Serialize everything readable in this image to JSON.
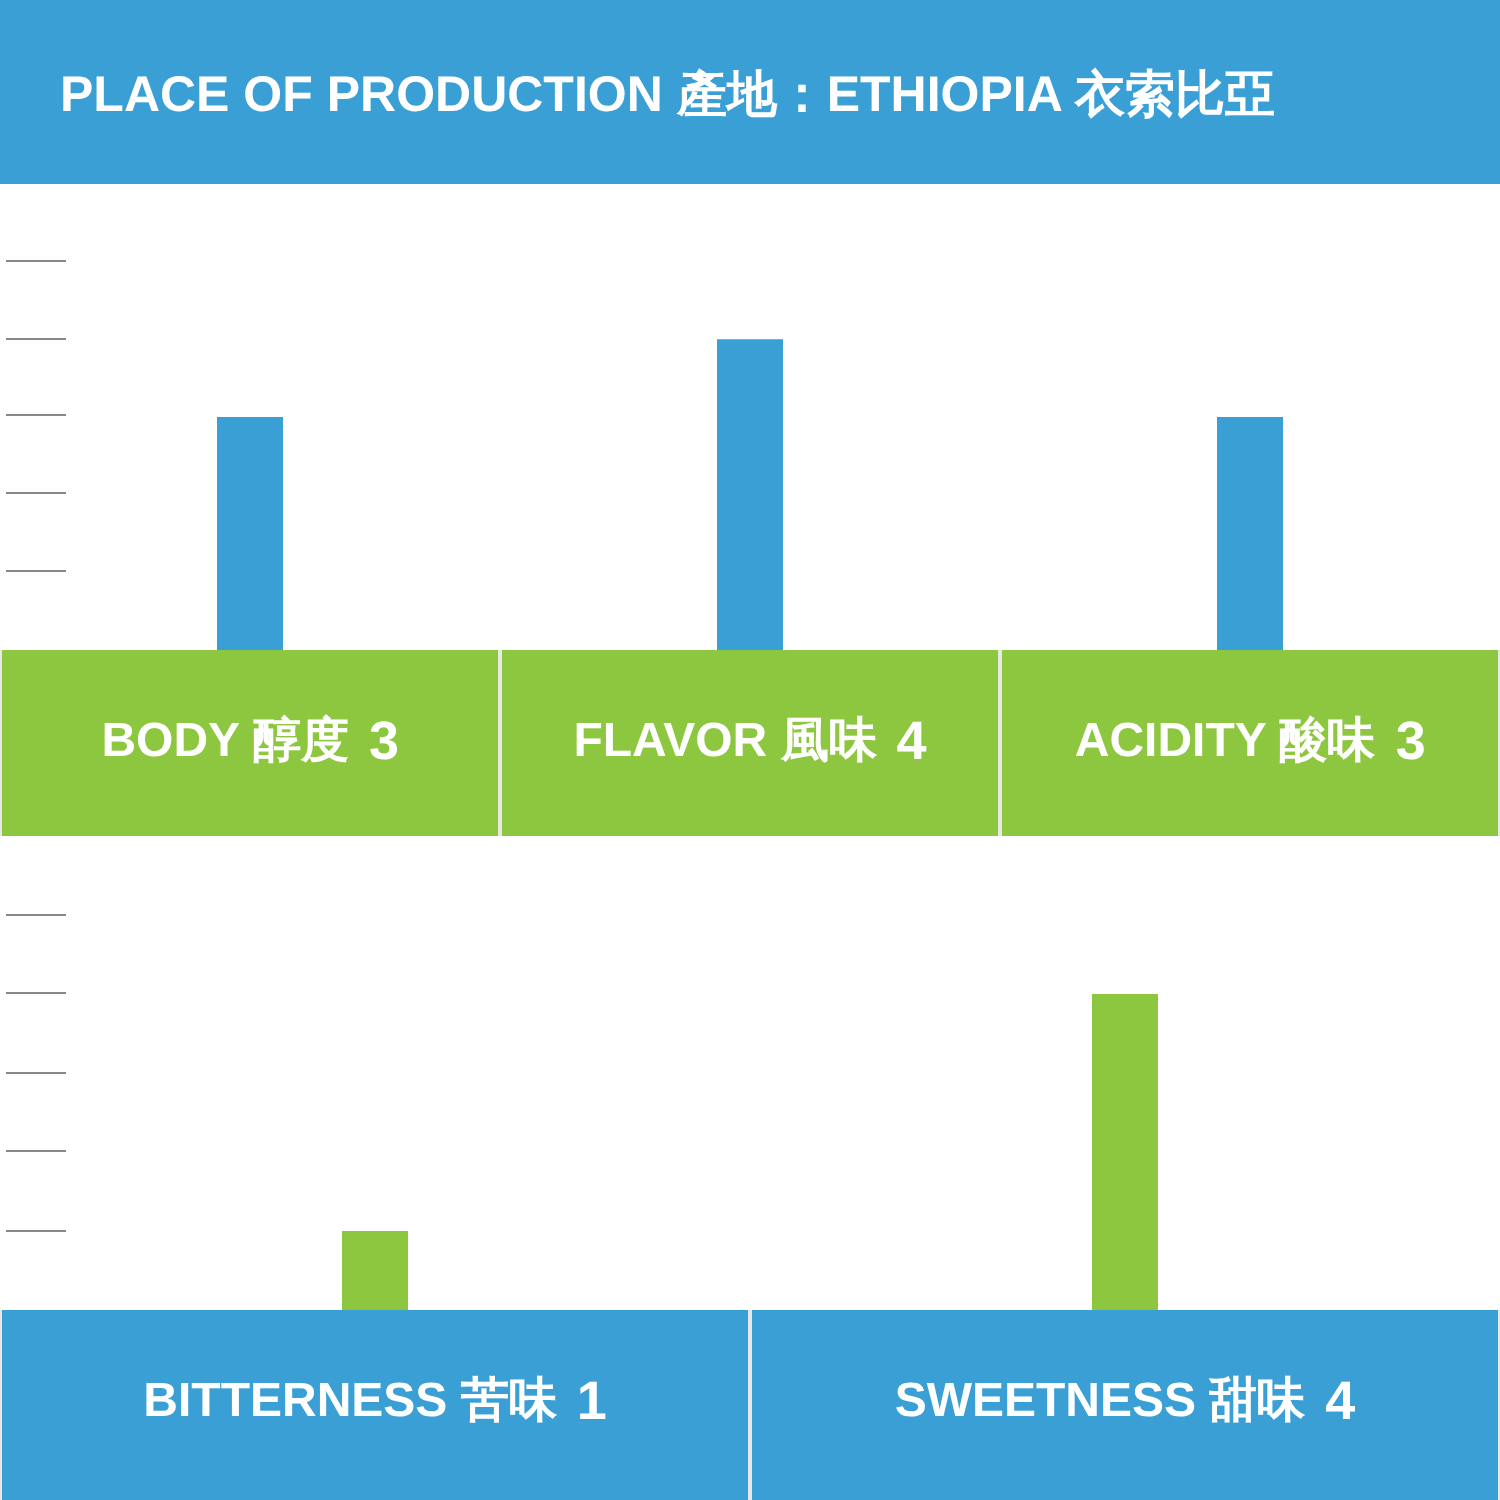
{
  "chart_data": [
    {
      "type": "bar",
      "title": "PLACE OF PRODUCTION 產地：ETHIOPIA 衣索比亞",
      "categories": [
        "BODY 醇度",
        "FLAVOR 風味",
        "ACIDITY 酸味"
      ],
      "values": [
        3,
        4,
        3
      ],
      "color": "#3a9fd5",
      "data_labels": true,
      "tick_labels": "x",
      "grid": false
    },
    {
      "type": "bar",
      "categories": [
        "BITTERNESS 苦味",
        "SWEETNESS 甜味"
      ],
      "values": [
        1,
        4
      ],
      "color": "#8dc63f",
      "data_labels": true,
      "tick_labels": "x",
      "grid": false
    }
  ]
}
